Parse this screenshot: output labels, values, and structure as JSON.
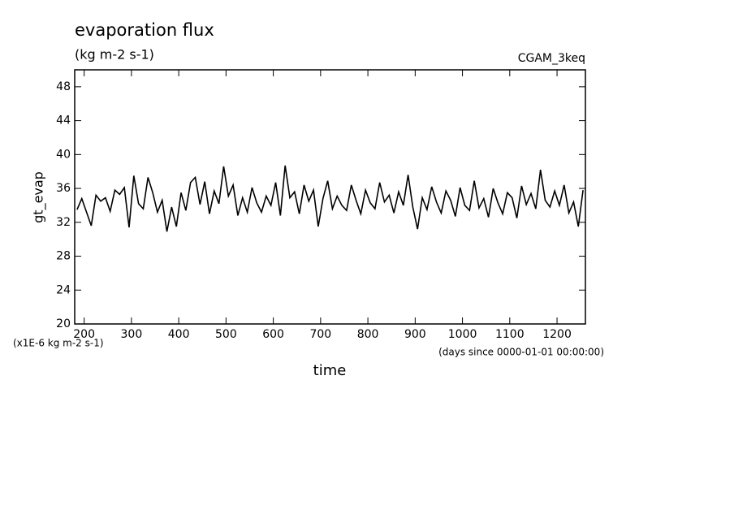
{
  "chart_data": {
    "type": "line",
    "title": "evaporation flux",
    "subtitle": "(kg m-2 s-1)",
    "annotation": "CGAM_3keq",
    "y_label": "gt_evap",
    "x_label": "time",
    "y_units": "(x1E-6 kg m-2 s-1)",
    "x_units": "(days since 0000-01-01 00:00:00)",
    "xlim": [
      180,
      1260
    ],
    "ylim": [
      20,
      50
    ],
    "xticks": [
      200,
      300,
      400,
      500,
      600,
      700,
      800,
      900,
      1000,
      1100,
      1200
    ],
    "yticks": [
      20,
      24,
      28,
      32,
      36,
      40,
      44,
      48
    ],
    "x": [
      185,
      195,
      205,
      215,
      225,
      235,
      245,
      255,
      265,
      275,
      285,
      295,
      305,
      315,
      325,
      335,
      345,
      355,
      365,
      375,
      385,
      395,
      405,
      415,
      425,
      435,
      445,
      455,
      465,
      475,
      485,
      495,
      505,
      515,
      525,
      535,
      545,
      555,
      565,
      575,
      585,
      595,
      605,
      615,
      625,
      635,
      645,
      655,
      665,
      675,
      685,
      695,
      705,
      715,
      725,
      735,
      745,
      755,
      765,
      775,
      785,
      795,
      805,
      815,
      825,
      835,
      845,
      855,
      865,
      875,
      885,
      895,
      905,
      915,
      925,
      935,
      945,
      955,
      965,
      975,
      985,
      995,
      1005,
      1015,
      1025,
      1035,
      1045,
      1055,
      1065,
      1075,
      1085,
      1095,
      1105,
      1115,
      1125,
      1135,
      1145,
      1155,
      1165,
      1175,
      1185,
      1195,
      1205,
      1215,
      1225,
      1235,
      1245,
      1255
    ],
    "series": [
      {
        "color": "#000000",
        "values": [
          33.5,
          34.8,
          33.2,
          31.6,
          35.2,
          34.5,
          34.9,
          33.3,
          35.8,
          35.3,
          36.1,
          31.4,
          37.5,
          34.2,
          33.6,
          37.3,
          35.5,
          33.2,
          34.6,
          30.9,
          33.8,
          31.5,
          35.5,
          33.4,
          36.7,
          37.3,
          34.1,
          36.8,
          33.0,
          35.7,
          34.2,
          38.6,
          35.1,
          36.4,
          32.8,
          34.9,
          33.2,
          36.1,
          34.3,
          33.2,
          35.1,
          34.0,
          36.7,
          32.8,
          38.7,
          34.9,
          35.6,
          33.0,
          36.4,
          34.5,
          35.8,
          31.5,
          34.8,
          36.9,
          33.6,
          35.1,
          34.0,
          33.4,
          36.4,
          34.6,
          33.0,
          35.8,
          34.3,
          33.6,
          36.7,
          34.4,
          35.2,
          33.1,
          35.6,
          34.0,
          37.6,
          33.8,
          31.2,
          34.9,
          33.5,
          36.2,
          34.4,
          33.1,
          35.7,
          34.6,
          32.7,
          36.1,
          34.0,
          33.4,
          36.9,
          33.7,
          34.8,
          32.6,
          36.0,
          34.3,
          33.0,
          35.5,
          34.9,
          32.5,
          36.3,
          34.1,
          35.4,
          33.6,
          38.2,
          34.6,
          33.8,
          35.7,
          34.0,
          36.4,
          33.1,
          34.4,
          31.5,
          35.8
        ]
      }
    ]
  }
}
